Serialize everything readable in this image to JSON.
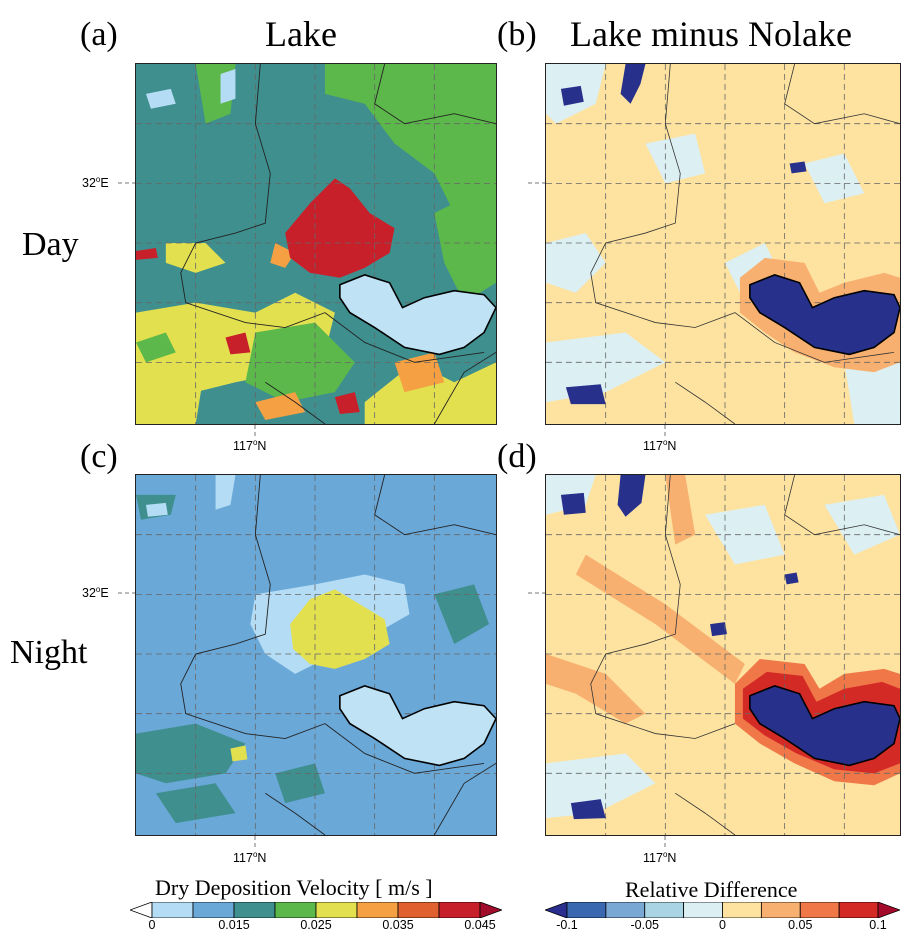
{
  "panels": {
    "a": {
      "letter": "(a)"
    },
    "b": {
      "letter": "(b)"
    },
    "c": {
      "letter": "(c)"
    },
    "d": {
      "letter": "(d)"
    }
  },
  "columns": {
    "left": "Lake",
    "right": "Lake minus Nolake"
  },
  "rows": {
    "top": "Day",
    "bottom": "Night"
  },
  "axes": {
    "lat_label_text": "32",
    "lat_label_unit": "E",
    "lon_label_text": "117",
    "lon_label_unit": "N",
    "degree_symbol": "o"
  },
  "colorbar_left": {
    "title": "Dry Deposition Velocity [ m/s ]",
    "colors": [
      "#ffffff",
      "#b4dcf4",
      "#6aa8d8",
      "#3f8f8f",
      "#5cb84a",
      "#e3e050",
      "#f5a042",
      "#e0612f",
      "#c8202a",
      "#a00c2a"
    ],
    "labels": [
      "0",
      "0.015",
      "0.025",
      "0.035",
      "0.045"
    ]
  },
  "colorbar_right": {
    "title": "Relative Difference",
    "colors": [
      "#2a2f8f",
      "#3a68b0",
      "#7aa8d4",
      "#a8d4e4",
      "#dcf0f4",
      "#fde2a0",
      "#f8b070",
      "#f07848",
      "#d42a26",
      "#a40a2a"
    ],
    "labels": [
      "-0.1",
      "-0.05",
      "0",
      "0.05",
      "0.1"
    ]
  },
  "colors": {
    "lake_fill_left": "#bfe3f5",
    "lake_fill_right": "#27318c",
    "halo_red": "#c8202a"
  }
}
